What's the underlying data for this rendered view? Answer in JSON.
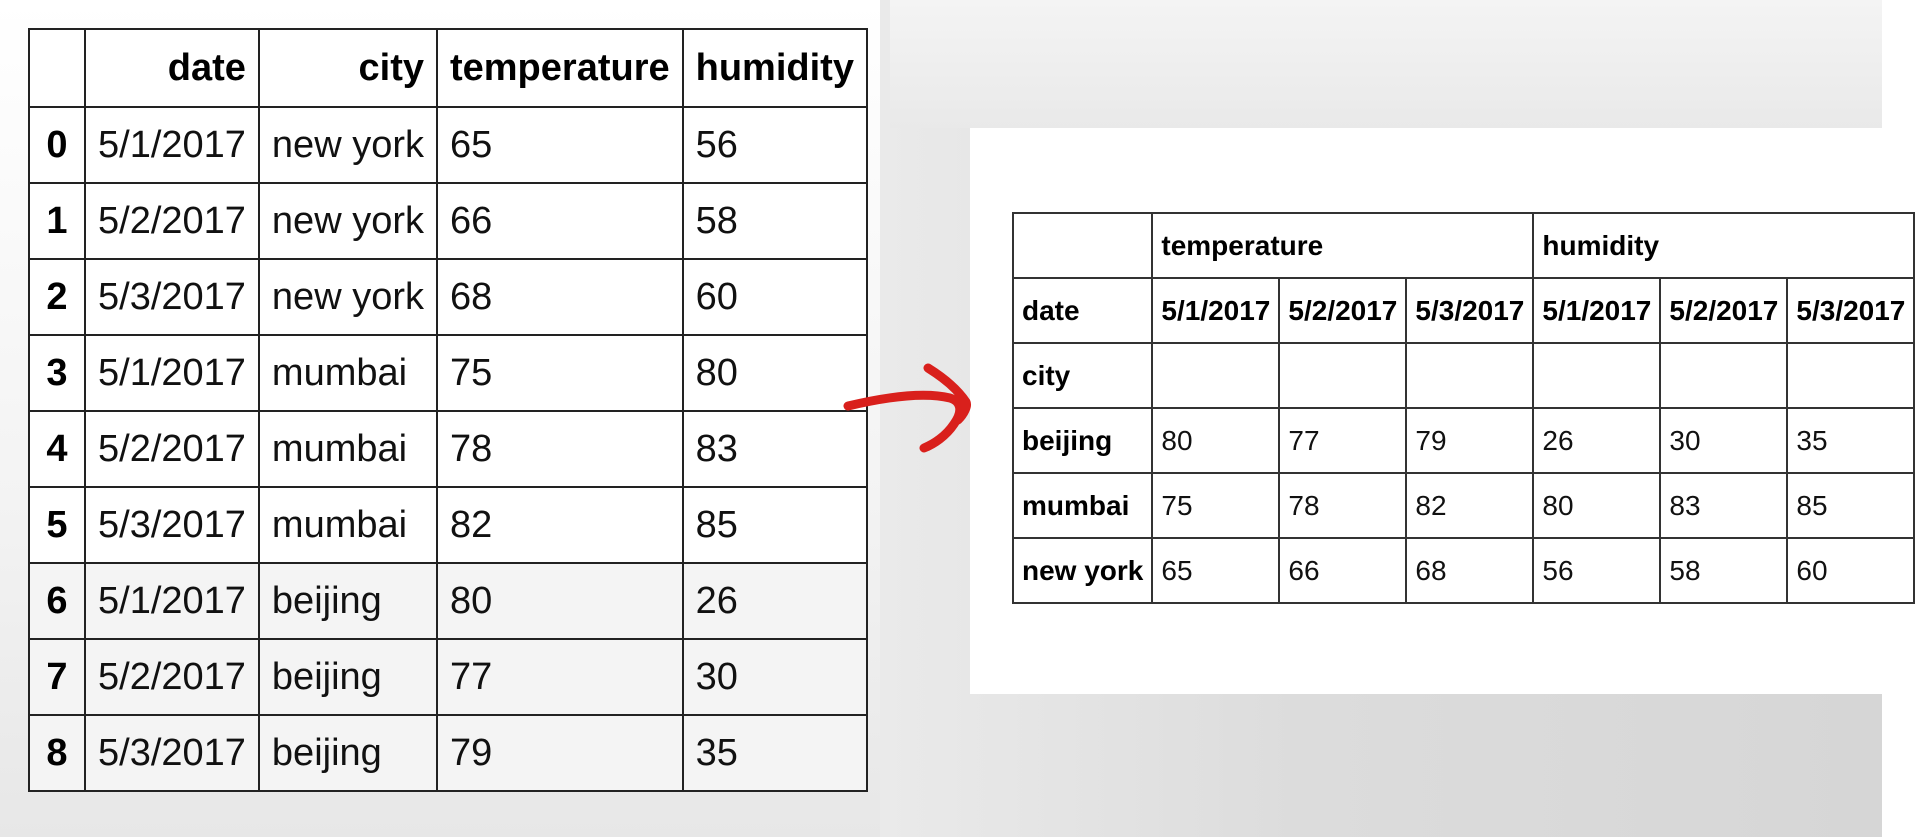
{
  "left_table": {
    "columns": [
      "",
      "date",
      "city",
      "temperature",
      "humidity"
    ],
    "rows": [
      {
        "index": "0",
        "date": "5/1/2017",
        "city": "new york",
        "temperature": "65",
        "humidity": "56"
      },
      {
        "index": "1",
        "date": "5/2/2017",
        "city": "new york",
        "temperature": "66",
        "humidity": "58"
      },
      {
        "index": "2",
        "date": "5/3/2017",
        "city": "new york",
        "temperature": "68",
        "humidity": "60"
      },
      {
        "index": "3",
        "date": "5/1/2017",
        "city": "mumbai",
        "temperature": "75",
        "humidity": "80"
      },
      {
        "index": "4",
        "date": "5/2/2017",
        "city": "mumbai",
        "temperature": "78",
        "humidity": "83"
      },
      {
        "index": "5",
        "date": "5/3/2017",
        "city": "mumbai",
        "temperature": "82",
        "humidity": "85"
      },
      {
        "index": "6",
        "date": "5/1/2017",
        "city": "beijing",
        "temperature": "80",
        "humidity": "26"
      },
      {
        "index": "7",
        "date": "5/2/2017",
        "city": "beijing",
        "temperature": "77",
        "humidity": "30"
      },
      {
        "index": "8",
        "date": "5/3/2017",
        "city": "beijing",
        "temperature": "79",
        "humidity": "35"
      }
    ]
  },
  "pivot_table": {
    "top_headers": [
      "temperature",
      "humidity"
    ],
    "columns_label": "date",
    "date_columns": [
      "5/1/2017",
      "5/2/2017",
      "5/3/2017",
      "5/1/2017",
      "5/2/2017",
      "5/3/2017"
    ],
    "index_label": "city",
    "rows": [
      {
        "city": "beijing",
        "values": [
          "80",
          "77",
          "79",
          "26",
          "30",
          "35"
        ]
      },
      {
        "city": "mumbai",
        "values": [
          "75",
          "78",
          "82",
          "80",
          "83",
          "85"
        ]
      },
      {
        "city": "new york",
        "values": [
          "65",
          "66",
          "68",
          "56",
          "58",
          "60"
        ]
      }
    ]
  },
  "colors": {
    "arrow": "#d9201c"
  }
}
